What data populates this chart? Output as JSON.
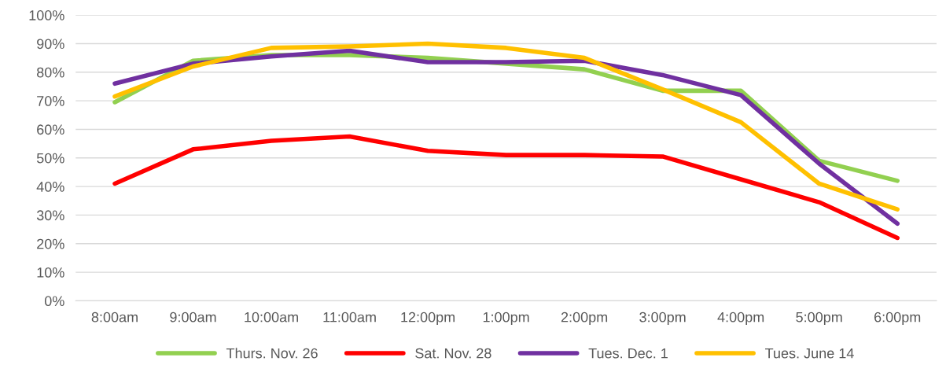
{
  "chart_data": {
    "type": "line",
    "categories": [
      "8:00am",
      "9:00am",
      "10:00am",
      "11:00am",
      "12:00pm",
      "1:00pm",
      "2:00pm",
      "3:00pm",
      "4:00pm",
      "5:00pm",
      "6:00pm"
    ],
    "series": [
      {
        "name": "Thurs. Nov. 26",
        "color": "#92d050",
        "values": [
          69.5,
          84,
          86,
          86,
          85,
          83,
          81,
          73.5,
          73.5,
          49,
          42
        ]
      },
      {
        "name": "Sat. Nov. 28",
        "color": "#ff0000",
        "values": [
          41,
          53,
          56,
          57.5,
          52.5,
          51,
          51,
          50.5,
          42.5,
          34.5,
          22
        ]
      },
      {
        "name": "Tues. Dec. 1",
        "color": "#7030a0",
        "values": [
          76,
          83,
          85.5,
          87.5,
          83.5,
          83.5,
          84,
          79,
          72,
          48,
          27
        ]
      },
      {
        "name": "Tues. June 14",
        "color": "#ffc000",
        "values": [
          71.5,
          82,
          88.5,
          89,
          90,
          88.5,
          85,
          74,
          62.5,
          41,
          32
        ]
      }
    ],
    "ylim": [
      0,
      100
    ],
    "yticks": [
      {
        "value": 0,
        "label": "0%"
      },
      {
        "value": 10,
        "label": "10%"
      },
      {
        "value": 20,
        "label": "20%"
      },
      {
        "value": 30,
        "label": "30%"
      },
      {
        "value": 40,
        "label": "40%"
      },
      {
        "value": 50,
        "label": "50%"
      },
      {
        "value": 60,
        "label": "60%"
      },
      {
        "value": 70,
        "label": "70%"
      },
      {
        "value": 80,
        "label": "80%"
      },
      {
        "value": 90,
        "label": "90%"
      },
      {
        "value": 100,
        "label": "100%"
      }
    ],
    "grid": "y",
    "legend": "bottom",
    "marker": "none",
    "line_style": "solid"
  }
}
